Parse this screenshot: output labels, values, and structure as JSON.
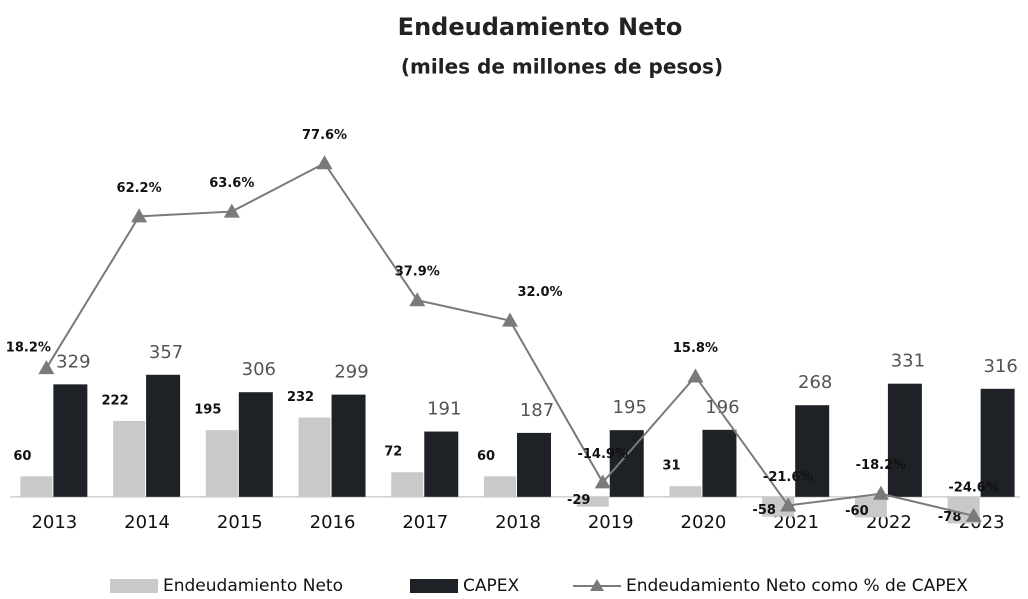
{
  "chart_data": {
    "type": "bar",
    "title": "Endeudamiento Neto",
    "subtitle": "(miles de millones de pesos)",
    "categories": [
      "2013",
      "2014",
      "2015",
      "2016",
      "2017",
      "2018",
      "2019",
      "2020",
      "2021",
      "2022",
      "2023"
    ],
    "series": [
      {
        "name": "Endeudamiento Neto",
        "type": "bar",
        "color": "#c9c9c9",
        "values": [
          60,
          222,
          195,
          232,
          72,
          60,
          -29,
          31,
          -58,
          -60,
          -78
        ]
      },
      {
        "name": "CAPEX",
        "type": "bar",
        "color": "#1e2226",
        "values": [
          329,
          357,
          306,
          299,
          191,
          187,
          195,
          196,
          268,
          331,
          316
        ]
      },
      {
        "name": "Endeudamiento Neto como % de CAPEX",
        "type": "line",
        "axis": "y2",
        "color": "#7a7a7a",
        "values": [
          18.2,
          62.2,
          63.6,
          77.6,
          37.9,
          32.0,
          -14.9,
          15.8,
          -21.6,
          -18.2,
          -24.6
        ],
        "value_labels": [
          "18.2%",
          "62.2%",
          "63.6%",
          "77.6%",
          "37.9%",
          "32.0%",
          "-14.9%",
          "15.8%",
          "-21.6%",
          "-18.2%",
          "-24.6%"
        ]
      }
    ],
    "ylim": [
      -100,
      1000
    ],
    "y2lim": [
      -29,
      80
    ]
  }
}
